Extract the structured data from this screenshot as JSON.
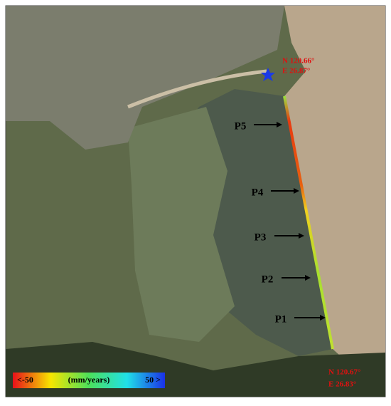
{
  "coordinates": {
    "north_point": [
      "N 120.66°",
      "E 26.87°"
    ],
    "south_point": [
      "N 120.67°",
      "E 26.83°"
    ]
  },
  "points": [
    "P5",
    "P4",
    "P3",
    "P2",
    "P1"
  ],
  "colorbar": {
    "min_label": "<-50",
    "unit": "(mm/years)",
    "max_label": "50 >"
  }
}
